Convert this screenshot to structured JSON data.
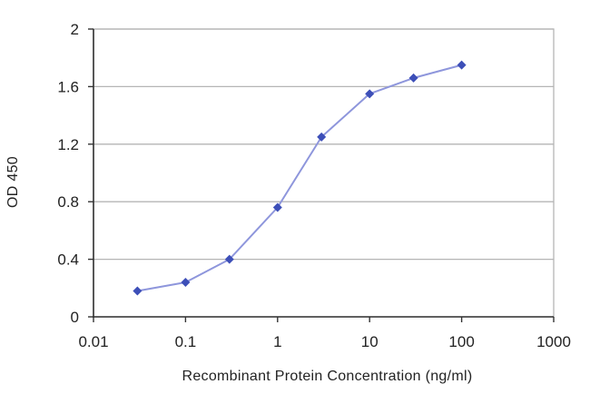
{
  "chart_data": {
    "type": "line",
    "title": "",
    "xlabel": "Recombinant Protein Concentration (ng/ml)",
    "ylabel": "OD 450",
    "x_scale": "log",
    "xlim": [
      0.01,
      1000
    ],
    "ylim": [
      0,
      2
    ],
    "x_ticks": [
      0.01,
      0.1,
      1,
      10,
      100,
      1000
    ],
    "x_tick_labels": [
      "0.01",
      "0.1",
      "1",
      "10",
      "100",
      "1000"
    ],
    "y_ticks": [
      0,
      0.4,
      0.8,
      1.2,
      1.6,
      2
    ],
    "y_tick_labels": [
      "0",
      "0.4",
      "0.8",
      "1.2",
      "1.6",
      "2"
    ],
    "grid": "horizontal",
    "legend": "none",
    "series": [
      {
        "x": [
          0.03,
          0.1,
          0.3,
          1,
          3,
          10,
          30,
          100
        ],
        "y": [
          0.18,
          0.24,
          0.4,
          0.76,
          1.25,
          1.55,
          1.66,
          1.75
        ],
        "color": "#3d4fb8",
        "line_color": "#8e96dc"
      }
    ],
    "plot_background": "#ffffff",
    "grid_color": "#b5b5b5"
  }
}
